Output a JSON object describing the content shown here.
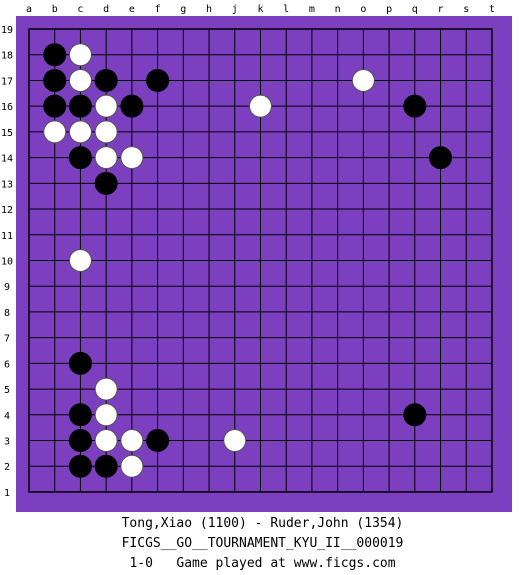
{
  "board": {
    "background_color": "#7b3fbf",
    "line_color": "#000000",
    "columns": [
      "a",
      "b",
      "c",
      "d",
      "e",
      "f",
      "g",
      "h",
      "j",
      "k",
      "l",
      "m",
      "n",
      "o",
      "p",
      "q",
      "r",
      "s",
      "t"
    ],
    "rows": [
      "19",
      "18",
      "17",
      "16",
      "15",
      "14",
      "13",
      "12",
      "11",
      "10",
      "9",
      "8",
      "7",
      "6",
      "5",
      "4",
      "3",
      "2",
      "1"
    ]
  },
  "stones": {
    "black": [
      "b18",
      "b17",
      "d17",
      "f17",
      "b16",
      "c16",
      "e16",
      "q16",
      "c14",
      "r14",
      "d13",
      "c6",
      "c4",
      "q4",
      "c3",
      "f3",
      "c2",
      "d2"
    ],
    "white": [
      "c18",
      "c17",
      "o17",
      "d16",
      "k16",
      "b15",
      "c15",
      "d15",
      "d14",
      "e14",
      "c10",
      "d5",
      "d4",
      "d3",
      "e3",
      "j3",
      "e2"
    ]
  },
  "footer": {
    "players": "Tong,Xiao (1100) - Ruder,John (1354)",
    "event": "FICGS__GO__TOURNAMENT_KYU_II__000019",
    "result_line": "1-0   Game played at www.ficgs.com"
  }
}
